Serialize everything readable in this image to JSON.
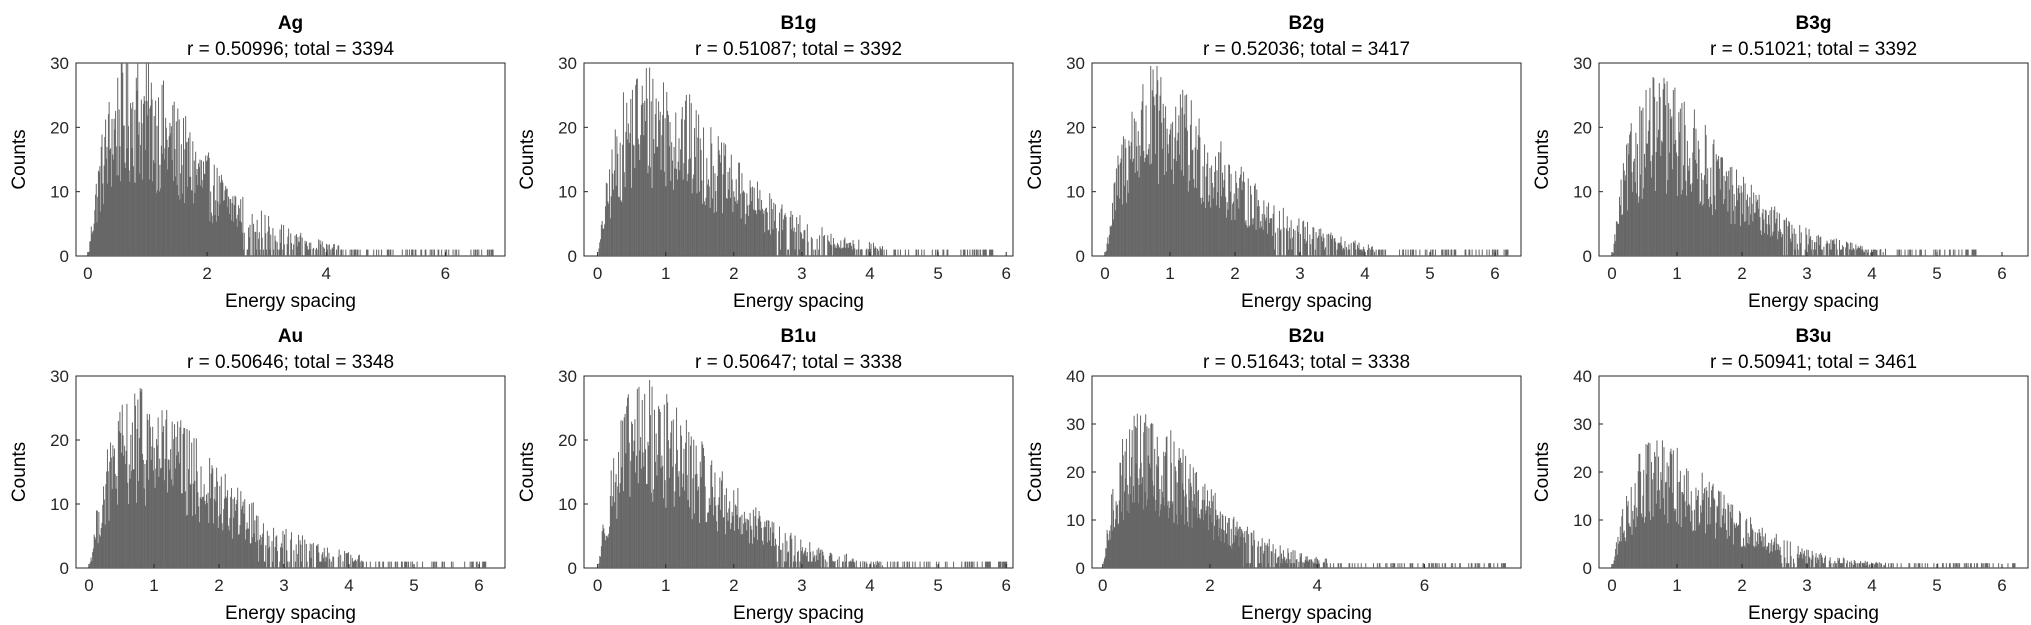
{
  "figure": {
    "bar_color": "#666666",
    "axis_color": "#262626"
  },
  "chart_data": [
    {
      "type": "bar",
      "title": "Ag",
      "subtitle": "r = 0.50996; total = 3394",
      "xlabel": "Energy spacing",
      "ylabel": "Counts",
      "xlim": [
        -0.2,
        7.0
      ],
      "ylim": [
        0,
        30
      ],
      "xticks": [
        0,
        2,
        4,
        6
      ],
      "yticks": [
        0,
        10,
        20,
        30
      ],
      "grid": false,
      "shape": {
        "peak": 0.75,
        "max": 24,
        "tail_end": 6.8
      }
    },
    {
      "type": "bar",
      "title": "B1g",
      "subtitle": "r = 0.51087; total = 3392",
      "xlabel": "Energy spacing",
      "ylabel": "Counts",
      "xlim": [
        -0.2,
        6.1
      ],
      "ylim": [
        0,
        30
      ],
      "xticks": [
        0,
        1,
        2,
        3,
        4,
        5,
        6
      ],
      "yticks": [
        0,
        10,
        20,
        30
      ],
      "grid": false,
      "shape": {
        "peak": 0.75,
        "max": 23,
        "tail_end": 5.8
      }
    },
    {
      "type": "bar",
      "title": "B2g",
      "subtitle": "r = 0.52036; total = 3417",
      "xlabel": "Energy spacing",
      "ylabel": "Counts",
      "xlim": [
        -0.2,
        6.4
      ],
      "ylim": [
        0,
        30
      ],
      "xticks": [
        0,
        1,
        2,
        3,
        4,
        5,
        6
      ],
      "yticks": [
        0,
        10,
        20,
        30
      ],
      "grid": false,
      "shape": {
        "peak": 0.75,
        "max": 22,
        "tail_end": 6.2
      }
    },
    {
      "type": "bar",
      "title": "B3g",
      "subtitle": "r = 0.51021; total = 3392",
      "xlabel": "Energy spacing",
      "ylabel": "Counts",
      "xlim": [
        -0.2,
        6.4
      ],
      "ylim": [
        0,
        30
      ],
      "xticks": [
        0,
        1,
        2,
        3,
        4,
        5,
        6
      ],
      "yticks": [
        0,
        10,
        20,
        30
      ],
      "grid": false,
      "shape": {
        "peak": 0.7,
        "max": 21,
        "tail_end": 5.6
      }
    },
    {
      "type": "bar",
      "title": "Au",
      "subtitle": "r = 0.50646; total = 3348",
      "xlabel": "Energy spacing",
      "ylabel": "Counts",
      "xlim": [
        -0.2,
        6.4
      ],
      "ylim": [
        0,
        30
      ],
      "xticks": [
        0,
        1,
        2,
        3,
        4,
        5,
        6
      ],
      "yticks": [
        0,
        10,
        20,
        30
      ],
      "grid": false,
      "shape": {
        "peak": 0.8,
        "max": 21,
        "tail_end": 6.1
      }
    },
    {
      "type": "bar",
      "title": "B1u",
      "subtitle": "r = 0.50647; total = 3338",
      "xlabel": "Energy spacing",
      "ylabel": "Counts",
      "xlim": [
        -0.2,
        6.1
      ],
      "ylim": [
        0,
        30
      ],
      "xticks": [
        0,
        1,
        2,
        3,
        4,
        5,
        6
      ],
      "yticks": [
        0,
        10,
        20,
        30
      ],
      "grid": false,
      "shape": {
        "peak": 0.7,
        "max": 22,
        "tail_end": 6.0
      }
    },
    {
      "type": "bar",
      "title": "B2u",
      "subtitle": "r = 0.51643; total = 3338",
      "xlabel": "Energy spacing",
      "ylabel": "Counts",
      "xlim": [
        -0.2,
        7.8
      ],
      "ylim": [
        0,
        40
      ],
      "xticks": [
        0,
        2,
        4,
        6
      ],
      "yticks": [
        0,
        10,
        20,
        30,
        40
      ],
      "grid": false,
      "shape": {
        "peak": 0.75,
        "max": 25,
        "tail_end": 7.5
      }
    },
    {
      "type": "bar",
      "title": "B3u",
      "subtitle": "r = 0.50941; total = 3461",
      "xlabel": "Energy spacing",
      "ylabel": "Counts",
      "xlim": [
        -0.2,
        6.4
      ],
      "ylim": [
        0,
        40
      ],
      "xticks": [
        0,
        1,
        2,
        3,
        4,
        5,
        6
      ],
      "yticks": [
        0,
        10,
        20,
        30,
        40
      ],
      "grid": false,
      "shape": {
        "peak": 0.7,
        "max": 20,
        "tail_end": 6.2
      }
    }
  ]
}
